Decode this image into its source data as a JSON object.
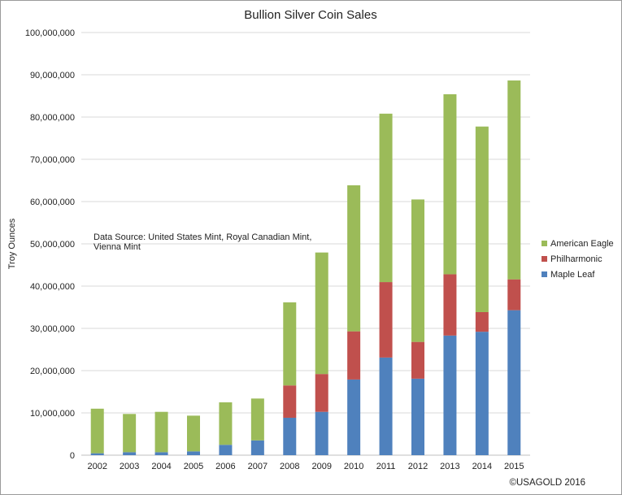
{
  "chart_data": {
    "type": "bar",
    "stacked": true,
    "title": "Bullion Silver Coin Sales",
    "xlabel": "",
    "ylabel": "Troy Ounces",
    "ylim": [
      0,
      100000000
    ],
    "ytick_step": 10000000,
    "grid": true,
    "legend_position": "right",
    "categories": [
      "2002",
      "2003",
      "2004",
      "2005",
      "2006",
      "2007",
      "2008",
      "2009",
      "2010",
      "2011",
      "2012",
      "2013",
      "2014",
      "2015"
    ],
    "series": [
      {
        "name": "Maple Leaf",
        "color": "#4f81bd",
        "values": [
          450000,
          700000,
          700000,
          900000,
          2450000,
          3500000,
          8850000,
          10250000,
          17900000,
          23100000,
          18100000,
          28300000,
          29200000,
          34300000
        ]
      },
      {
        "name": "Philharmonic",
        "color": "#c0504d",
        "values": [
          0,
          0,
          0,
          0,
          0,
          0,
          7650000,
          8950000,
          11400000,
          17850000,
          8700000,
          14500000,
          4650000,
          7300000
        ]
      },
      {
        "name": "American Eagle",
        "color": "#9bbb59",
        "values": [
          10550000,
          9050000,
          9550000,
          8450000,
          10050000,
          9900000,
          19650000,
          28750000,
          34550000,
          39850000,
          33700000,
          42600000,
          43900000,
          47050000
        ]
      }
    ],
    "annotations": [
      "Data Source: United States Mint, Royal Canadian Mint,",
      "Vienna Mint"
    ],
    "copyright": "©USAGOLD 2016"
  }
}
